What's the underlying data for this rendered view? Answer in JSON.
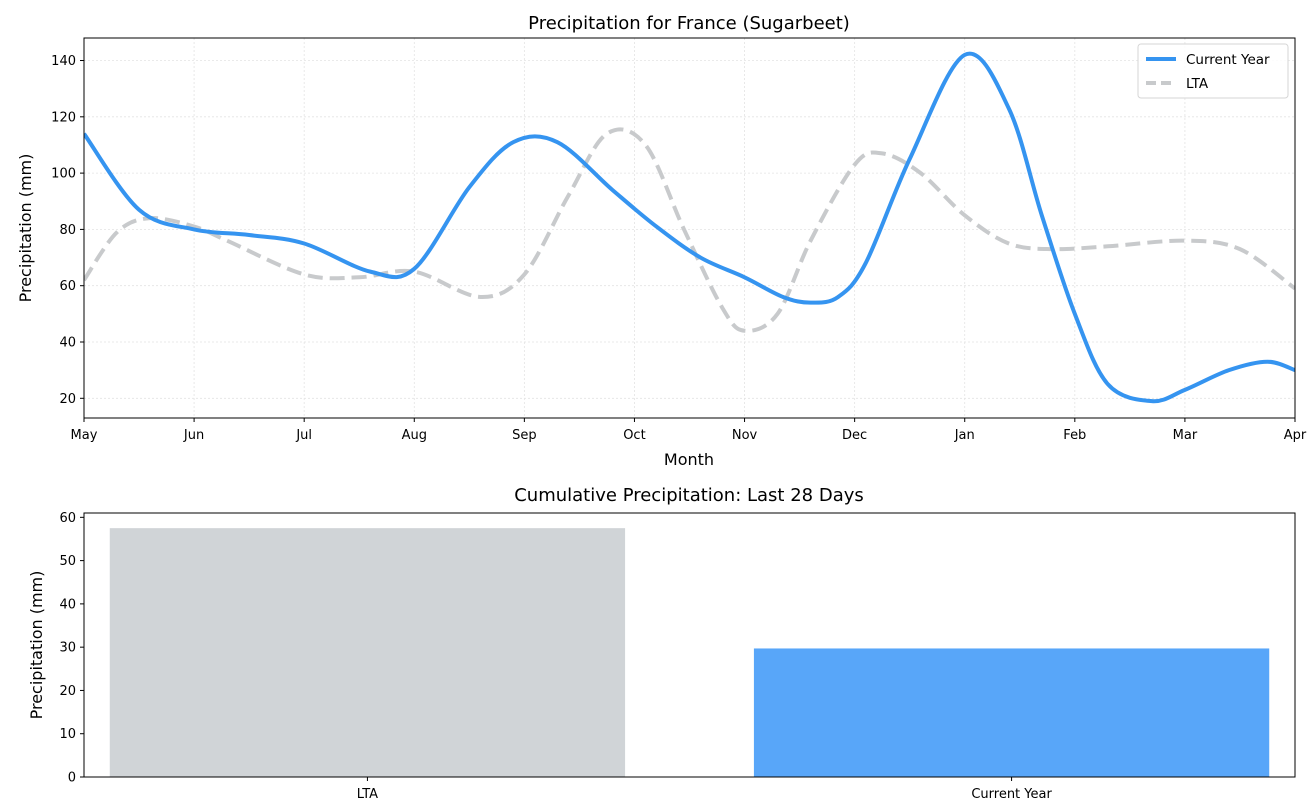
{
  "chart_data": [
    {
      "type": "line",
      "title": "Precipitation for France (Sugarbeet)",
      "xlabel": "Month",
      "ylabel": "Precipitation (mm)",
      "x_tick_labels": [
        "May",
        "Jun",
        "Jul",
        "Aug",
        "Sep",
        "Oct",
        "Nov",
        "Dec",
        "Jan",
        "Feb",
        "Mar",
        "Apr"
      ],
      "xlim": [
        0,
        11
      ],
      "ylim": [
        13,
        148
      ],
      "y_ticks": [
        20,
        40,
        60,
        80,
        100,
        120,
        140
      ],
      "grid": true,
      "legend": "top-right",
      "series": [
        {
          "name": "Current Year",
          "color": "#3594f0",
          "style": "solid",
          "x": [
            0,
            0.5,
            1,
            1.5,
            2,
            2.6,
            3,
            3.5,
            3.9,
            4.3,
            4.8,
            5.2,
            5.6,
            6,
            6.35,
            6.6,
            6.85,
            7.1,
            7.5,
            8,
            8.4,
            8.7,
            9,
            9.3,
            9.7,
            10,
            10.4,
            10.75,
            11
          ],
          "y": [
            114,
            87,
            80,
            78,
            75,
            65,
            66,
            95,
            111,
            111,
            94,
            81,
            70,
            63,
            56,
            54,
            56,
            68,
            105,
            142,
            123,
            85,
            50,
            25,
            19,
            23,
            30,
            33,
            30
          ]
        },
        {
          "name": "LTA",
          "color": "#c8cacc",
          "style": "dashed",
          "x": [
            0,
            0.3,
            0.6,
            1,
            1.3,
            2,
            2.5,
            3,
            3.6,
            4,
            4.4,
            4.75,
            5.1,
            5.45,
            5.8,
            6,
            6.3,
            6.6,
            7,
            7.25,
            7.6,
            8,
            8.4,
            8.8,
            9.3,
            10,
            10.5,
            11
          ],
          "y": [
            62,
            79,
            84,
            81,
            76,
            64,
            63,
            65,
            56,
            64,
            92,
            114,
            110,
            80,
            52,
            44,
            50,
            76,
            103,
            107,
            100,
            85,
            75,
            73,
            74,
            76,
            73,
            59
          ]
        }
      ]
    },
    {
      "type": "bar",
      "title": "Cumulative Precipitation: Last 28 Days",
      "xlabel": "",
      "ylabel": "Precipitation (mm)",
      "categories": [
        "LTA",
        "Current Year"
      ],
      "values": [
        57.5,
        29.7
      ],
      "colors": [
        "#d0d4d7",
        "#58a6f9"
      ],
      "ylim": [
        0,
        61
      ],
      "y_ticks": [
        0,
        10,
        20,
        30,
        40,
        50,
        60
      ],
      "grid": false
    }
  ]
}
